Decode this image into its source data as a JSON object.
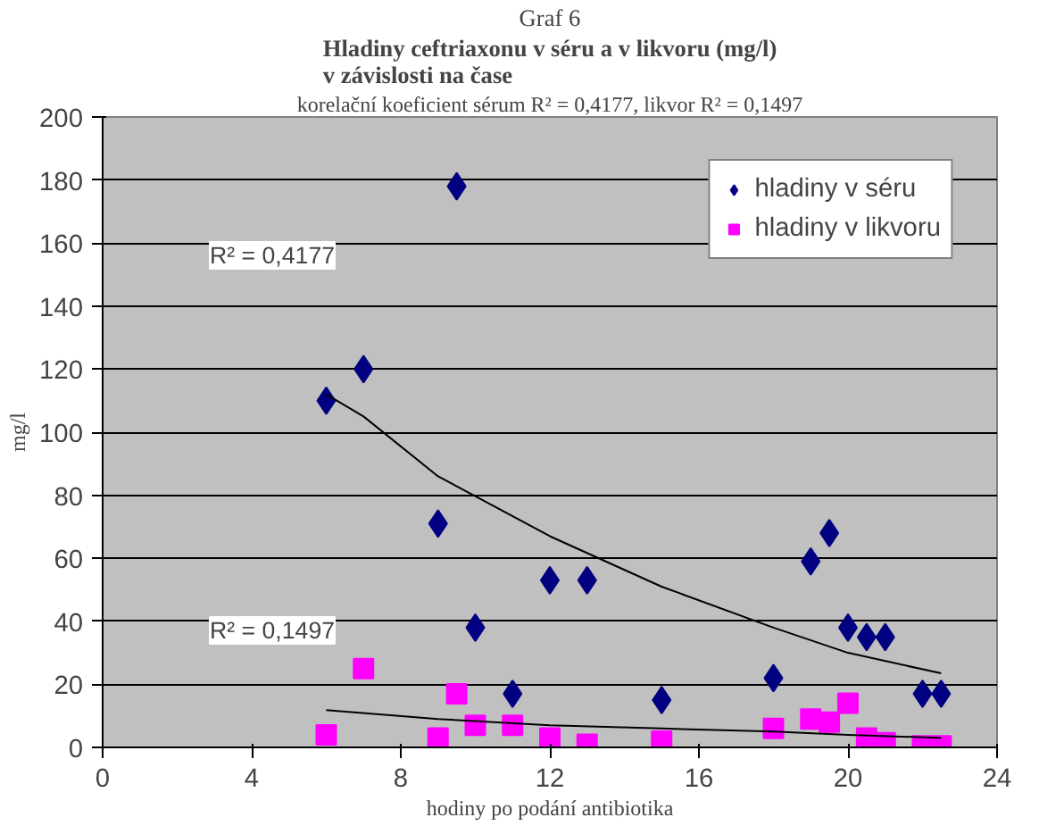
{
  "chart_data": {
    "type": "scatter",
    "title": "Graf 6",
    "subtitle": "Hladiny ceftriaxonu v séru a v likvoru (mg/l)\nv závislosti na čase",
    "xlabel": "hodiny po podání antibiotika",
    "ylabel": "mg/l",
    "annotations": [
      "korelační koeficient sérum R² = 0,4177, likvor R² = 0,1497",
      "R² = 0,4177",
      "R² = 0,1497"
    ],
    "series": [
      {
        "name": "hladiny v séru",
        "color": "#000080",
        "marker": "diamond",
        "x": [
          6,
          7,
          9,
          9.5,
          10,
          11,
          12,
          13,
          15,
          18,
          19,
          19.5,
          20,
          20.5,
          21,
          22,
          22.5
        ],
        "values": [
          110,
          120,
          71,
          178,
          38,
          17,
          53,
          53,
          15,
          22,
          59,
          68,
          38,
          35,
          35,
          17,
          17
        ]
      },
      {
        "name": "hladiny v likvoru",
        "color": "#ff00ff",
        "marker": "square",
        "x": [
          6,
          7,
          9,
          9.5,
          10,
          11,
          12,
          13,
          15,
          18,
          19,
          19.5,
          20,
          20.5,
          21,
          22,
          22.5
        ],
        "values": [
          4,
          25,
          3,
          17,
          7,
          7,
          3,
          1,
          2,
          6,
          9,
          8,
          14,
          3,
          1.5,
          0.5,
          0.5
        ]
      },
      {
        "type": "line",
        "color": "#000000",
        "marker": "none",
        "x": [
          6,
          7,
          9,
          12,
          15,
          18,
          20,
          22.5
        ],
        "values": [
          112,
          105,
          86,
          67,
          51,
          38,
          30,
          23.5
        ]
      },
      {
        "type": "line",
        "color": "#000000",
        "marker": "none",
        "x": [
          6,
          9,
          12,
          15,
          18,
          20,
          22.5
        ],
        "values": [
          11.8,
          9,
          7,
          6,
          5,
          4,
          3
        ]
      }
    ],
    "xlim": [
      0,
      24
    ],
    "xticks": [
      0,
      4,
      8,
      12,
      16,
      20,
      24
    ],
    "ylim": [
      0,
      200
    ],
    "yticks": [
      0,
      20,
      40,
      60,
      80,
      100,
      120,
      140,
      160,
      180,
      200
    ],
    "grid": "y",
    "legend": "top right"
  }
}
